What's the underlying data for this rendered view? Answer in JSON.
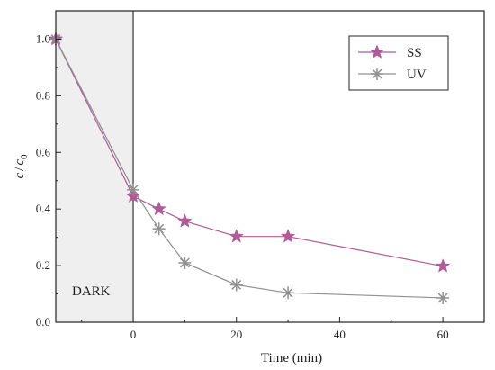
{
  "chart_data": {
    "type": "line",
    "xlabel": "Time (min)",
    "ylabel_main": "c",
    "ylabel_sep": "/",
    "ylabel_denom": "c",
    "ylabel_sub": "0",
    "xlim": [
      -15,
      68
    ],
    "ylim": [
      0,
      1.1
    ],
    "x_ticks": [
      0,
      20,
      40,
      60
    ],
    "x_tick_labels": [
      "0",
      "20",
      "40",
      "60"
    ],
    "y_ticks": [
      0.0,
      0.2,
      0.4,
      0.6,
      0.8,
      1.0
    ],
    "y_tick_labels": [
      "0.0",
      "0.2",
      "0.4",
      "0.6",
      "0.8",
      "1.0"
    ],
    "annotation": "DARK",
    "dark_region": [
      -15,
      0
    ],
    "grid": false,
    "legend_position": "top-right",
    "series": [
      {
        "name": "SS",
        "color": "#b05a97",
        "marker": "star",
        "x": [
          -15,
          0,
          5,
          10,
          20,
          30,
          60
        ],
        "y": [
          1.0,
          0.445,
          0.4,
          0.357,
          0.303,
          0.303,
          0.198
        ]
      },
      {
        "name": "UV",
        "color": "#8f8f8f",
        "marker": "asterisk",
        "x": [
          -15,
          0,
          5,
          10,
          20,
          30,
          60
        ],
        "y": [
          1.0,
          0.468,
          0.33,
          0.21,
          0.132,
          0.104,
          0.086
        ]
      }
    ]
  }
}
